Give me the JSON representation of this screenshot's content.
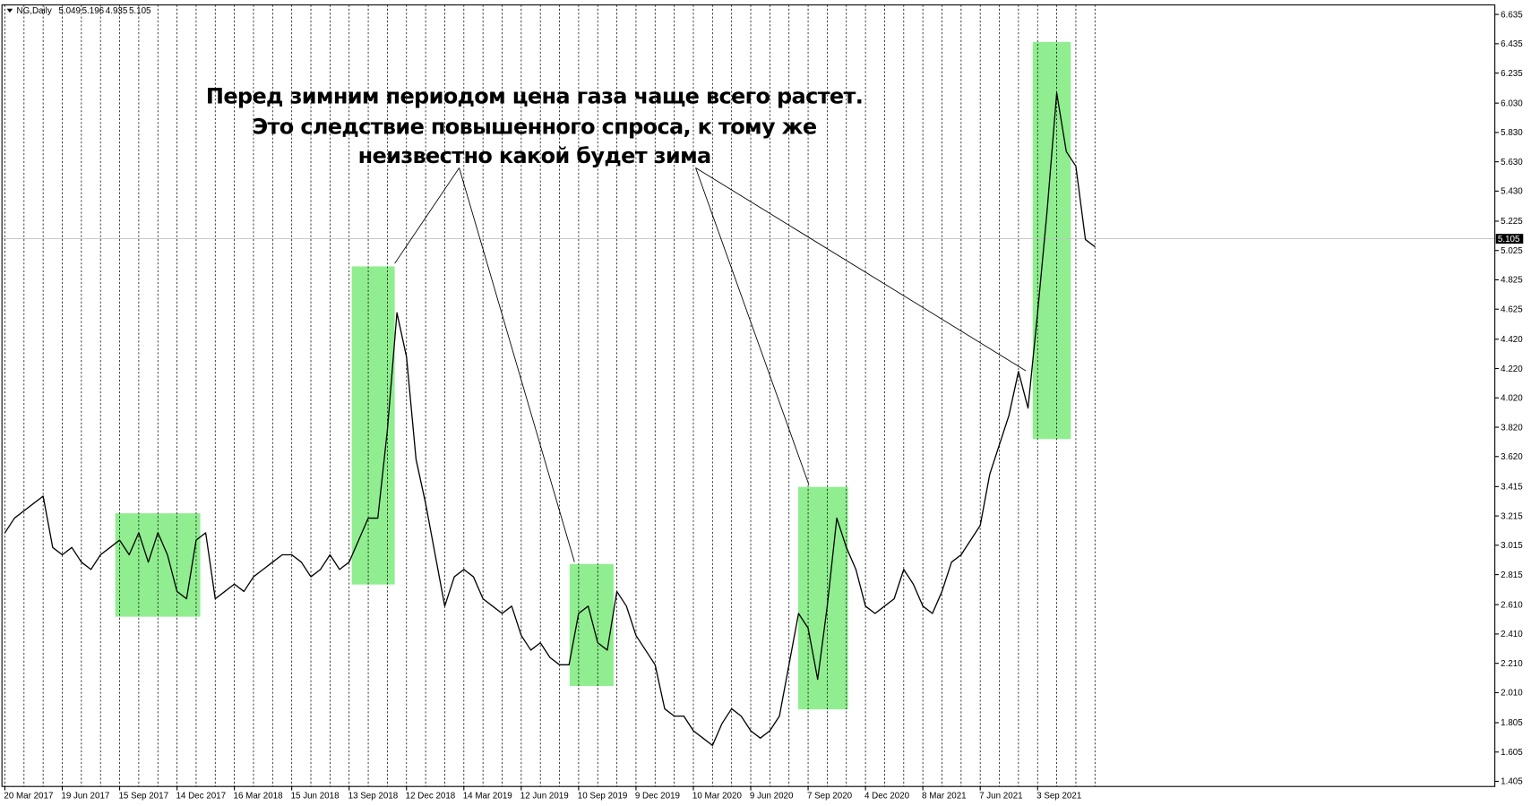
{
  "chart_data": {
    "type": "line",
    "title": "NG,Daily",
    "ohlc": [
      5.049,
      5.196,
      4.935,
      5.105
    ],
    "annotation": [
      "Перед зимним периодом цена газа чаще всего растет.",
      "Это следствие повышенного спроса, к тому же",
      "неизвестно какой будет зима"
    ],
    "categories": [
      "20 Mar 2017",
      null,
      null,
      null,
      null,
      null,
      "19 Jun 2017",
      null,
      null,
      null,
      null,
      null,
      "15 Sep 2017",
      null,
      null,
      null,
      null,
      null,
      "14 Dec 2017",
      null,
      null,
      null,
      null,
      null,
      "16 Mar 2018",
      null,
      null,
      null,
      null,
      null,
      "15 Jun 2018",
      null,
      null,
      null,
      null,
      null,
      "13 Sep 2018",
      null,
      null,
      null,
      null,
      null,
      "12 Dec 2018",
      null,
      null,
      null,
      null,
      null,
      "14 Mar 2019",
      null,
      null,
      null,
      null,
      null,
      "12 Jun 2019",
      null,
      null,
      null,
      null,
      null,
      "10 Sep 2019",
      null,
      null,
      null,
      null,
      null,
      "9 Dec 2019",
      null,
      null,
      null,
      null,
      null,
      "10 Mar 2020",
      null,
      null,
      null,
      null,
      null,
      "9 Jun 2020",
      null,
      null,
      null,
      null,
      null,
      "7 Sep 2020",
      null,
      null,
      null,
      null,
      null,
      "4 Dec 2020",
      null,
      null,
      null,
      null,
      null,
      "8 Mar 2021",
      null,
      null,
      null,
      null,
      null,
      "7 Jun 2021",
      null,
      null,
      null,
      null,
      null,
      "3 Sep 2021",
      null,
      null,
      null,
      null,
      null,
      null
    ],
    "values": [
      3.1,
      3.2,
      3.25,
      3.3,
      3.35,
      3.0,
      2.95,
      3.0,
      2.9,
      2.85,
      2.95,
      3.0,
      3.05,
      2.95,
      3.1,
      2.9,
      3.1,
      2.95,
      2.7,
      2.65,
      3.05,
      3.1,
      2.65,
      2.7,
      2.75,
      2.7,
      2.8,
      2.85,
      2.9,
      2.95,
      2.95,
      2.9,
      2.8,
      2.85,
      2.95,
      2.85,
      2.9,
      3.05,
      3.2,
      3.2,
      3.8,
      4.6,
      4.3,
      3.6,
      3.3,
      2.95,
      2.6,
      2.8,
      2.85,
      2.8,
      2.65,
      2.6,
      2.55,
      2.6,
      2.4,
      2.3,
      2.35,
      2.25,
      2.2,
      2.2,
      2.55,
      2.6,
      2.35,
      2.3,
      2.7,
      2.6,
      2.4,
      2.3,
      2.2,
      1.9,
      1.85,
      1.85,
      1.75,
      1.7,
      1.65,
      1.8,
      1.9,
      1.85,
      1.75,
      1.7,
      1.75,
      1.85,
      2.2,
      2.55,
      2.45,
      2.1,
      2.6,
      3.2,
      3.0,
      2.85,
      2.6,
      2.55,
      2.6,
      2.65,
      2.85,
      2.75,
      2.6,
      2.55,
      2.7,
      2.9,
      2.95,
      3.05,
      3.15,
      3.5,
      3.7,
      3.9,
      4.2,
      3.95,
      4.6,
      5.3,
      6.1,
      5.7,
      5.6,
      5.1,
      5.05
    ],
    "color": "#000000",
    "ylim": [
      1.37,
      6.7
    ],
    "yticks": [
      6.635,
      6.435,
      6.235,
      {
        "value": 6.03,
        "label": "6.030"
      },
      {
        "value": 5.83,
        "label": "5.830"
      },
      {
        "value": 5.63,
        "label": "5.630"
      },
      {
        "value": 5.43,
        "label": "5.430"
      },
      5.225,
      5.025,
      4.825,
      4.625,
      {
        "value": 4.42,
        "label": "4.420"
      },
      {
        "value": 4.22,
        "label": "4.220"
      },
      {
        "value": 4.02,
        "label": "4.020"
      },
      {
        "value": 3.82,
        "label": "3.820"
      },
      {
        "value": 3.62,
        "label": "3.620"
      },
      3.415,
      3.215,
      3.015,
      2.815,
      {
        "value": 2.61,
        "label": "2.610"
      },
      {
        "value": 2.41,
        "label": "2.410"
      },
      {
        "value": 2.21,
        "label": "2.210"
      },
      {
        "value": 2.01,
        "label": "2.010"
      },
      1.805,
      1.605,
      1.405
    ],
    "highlight_color": "#90ee90"
  }
}
